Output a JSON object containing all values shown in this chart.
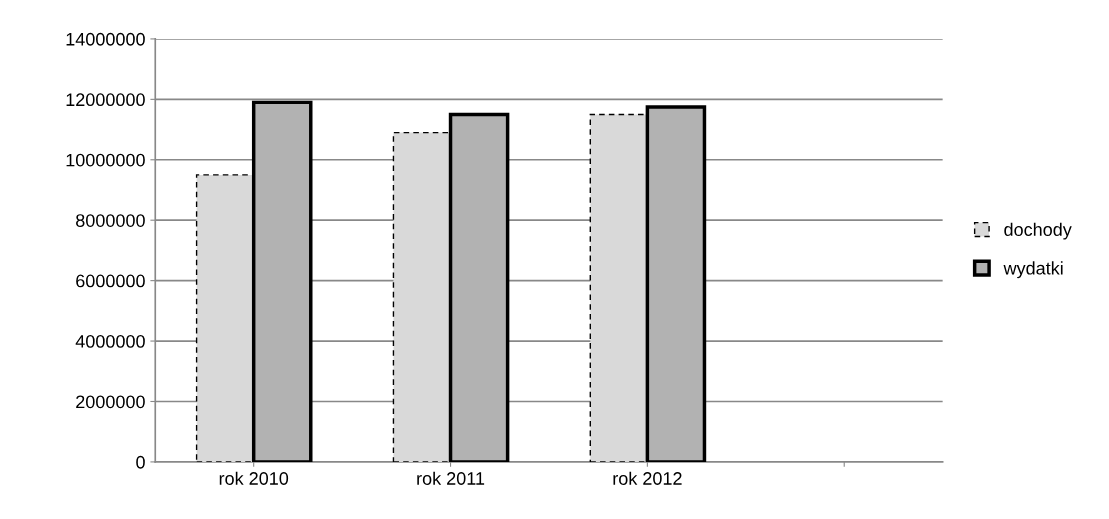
{
  "chart_data": {
    "type": "bar",
    "categories": [
      "rok 2010",
      "rok 2011",
      "rok 2012",
      null
    ],
    "series": [
      {
        "name": "dochody",
        "color": "#d9d9d9",
        "line_style": "dashed",
        "values": [
          9500000,
          10900000,
          11500000,
          null
        ]
      },
      {
        "name": "wydatki",
        "color": "#b2b2b2",
        "line_style": "solid",
        "values": [
          11900000,
          11500000,
          11750000,
          null
        ]
      }
    ],
    "ylim": [
      0,
      14000000
    ],
    "yticks": [
      0,
      2000000,
      4000000,
      6000000,
      8000000,
      10000000,
      12000000,
      14000000
    ],
    "grid": "y",
    "legend": "right"
  }
}
